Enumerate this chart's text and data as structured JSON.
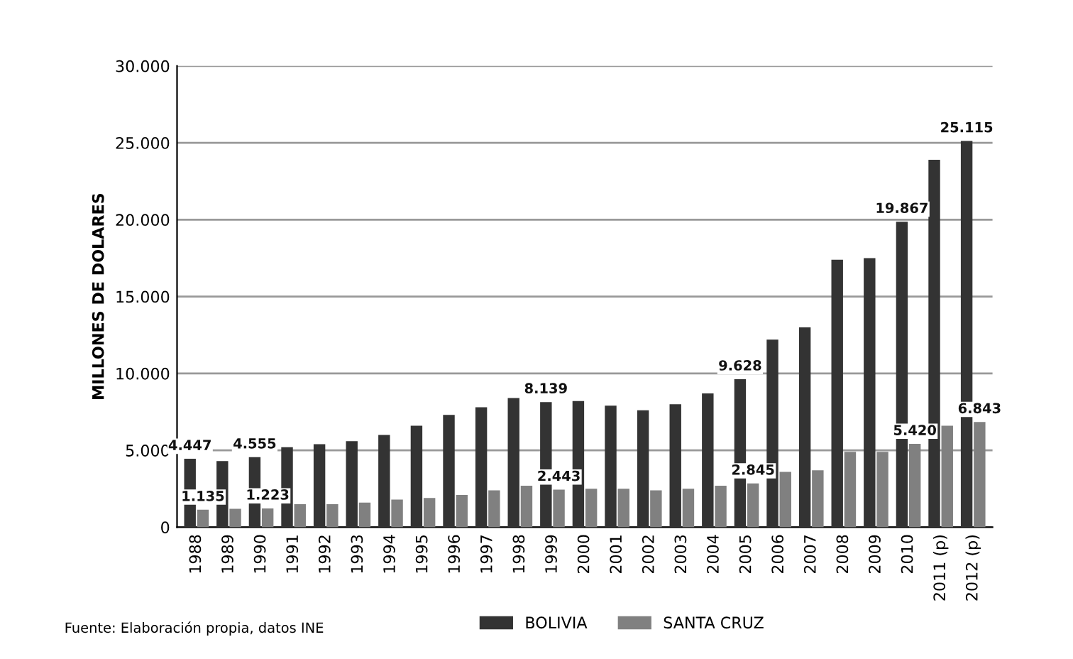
{
  "chart_data": {
    "type": "bar",
    "ylabel": "MILLONES DE DOLARES",
    "categories": [
      "1988",
      "1989",
      "1990",
      "1991",
      "1992",
      "1993",
      "1994",
      "1995",
      "1996",
      "1997",
      "1998",
      "1999",
      "2000",
      "2001",
      "2002",
      "2003",
      "2004",
      "2005",
      "2006",
      "2007",
      "2008",
      "2009",
      "2010",
      "2011 (p)",
      "2012 (p)"
    ],
    "series": [
      {
        "name": "BOLIVIA",
        "color": "#333333",
        "values": [
          4447,
          4300,
          4555,
          5200,
          5400,
          5600,
          6000,
          6600,
          7300,
          7800,
          8400,
          8139,
          8200,
          7900,
          7600,
          8000,
          8700,
          9628,
          12200,
          13000,
          17400,
          17500,
          19867,
          23900,
          25115
        ],
        "value_labels": [
          "4.447",
          null,
          "4.555",
          null,
          null,
          null,
          null,
          null,
          null,
          null,
          null,
          "8.139",
          null,
          null,
          null,
          null,
          null,
          "9.628",
          null,
          null,
          null,
          null,
          "19.867",
          null,
          "25.115"
        ]
      },
      {
        "name": "SANTA CRUZ",
        "color": "#808080",
        "values": [
          1135,
          1200,
          1223,
          1500,
          1500,
          1600,
          1800,
          1900,
          2100,
          2400,
          2700,
          2443,
          2500,
          2500,
          2400,
          2500,
          2700,
          2845,
          3600,
          3700,
          4900,
          4900,
          5420,
          6600,
          6843
        ],
        "value_labels": [
          "1.135",
          null,
          "1.223",
          null,
          null,
          null,
          null,
          null,
          null,
          null,
          null,
          "2.443",
          null,
          null,
          null,
          null,
          null,
          "2.845",
          null,
          null,
          null,
          null,
          "5.420",
          null,
          "6.843"
        ]
      }
    ],
    "ylim": [
      0,
      30000
    ],
    "yticks": [
      0,
      {
        "value": 5000,
        "label": "5.000"
      },
      {
        "value": 10000,
        "label": "10.000"
      },
      {
        "value": 15000,
        "label": "15.000"
      },
      {
        "value": 20000,
        "label": "20.000"
      },
      {
        "value": 25000,
        "label": "25.000"
      },
      {
        "value": 30000,
        "label": "30.000"
      }
    ],
    "grid": "y",
    "legend": "bottom",
    "annotations": [
      "Fuente: Elaboración propia, datos INE"
    ]
  }
}
